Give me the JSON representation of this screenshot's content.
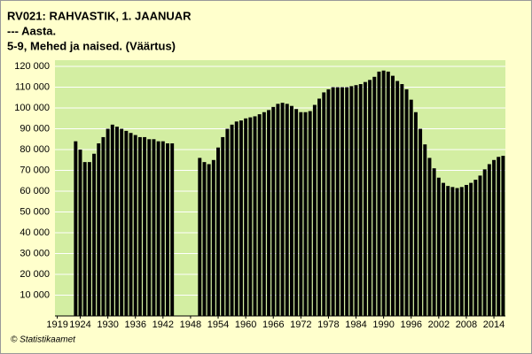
{
  "chart_data": {
    "type": "bar",
    "title": [
      "RV021: RAHVASTIK, 1. JAANUAR",
      "--- Aasta.",
      "5-9, Mehed ja naised. (Väärtus)"
    ],
    "source": "© Statistikaamet",
    "color": "#000000",
    "plot_background": "#d3eea2",
    "grid": true,
    "x": [
      1919,
      1920,
      1921,
      1922,
      1923,
      1924,
      1925,
      1926,
      1927,
      1928,
      1929,
      1930,
      1931,
      1932,
      1933,
      1934,
      1935,
      1936,
      1937,
      1938,
      1939,
      1940,
      1941,
      1942,
      1943,
      1944,
      1945,
      1946,
      1947,
      1948,
      1949,
      1950,
      1951,
      1952,
      1953,
      1954,
      1955,
      1956,
      1957,
      1958,
      1959,
      1960,
      1961,
      1962,
      1963,
      1964,
      1965,
      1966,
      1967,
      1968,
      1969,
      1970,
      1971,
      1972,
      1973,
      1974,
      1975,
      1976,
      1977,
      1978,
      1979,
      1980,
      1981,
      1982,
      1983,
      1984,
      1985,
      1986,
      1987,
      1988,
      1989,
      1990,
      1991,
      1992,
      1993,
      1994,
      1995,
      1996,
      1997,
      1998,
      1999,
      2000,
      2001,
      2002,
      2003,
      2004,
      2005,
      2006,
      2007,
      2008,
      2009,
      2010,
      2011,
      2012,
      2013,
      2014,
      2015,
      2016
    ],
    "values": [
      null,
      null,
      null,
      null,
      84000,
      80000,
      74000,
      74000,
      78000,
      83000,
      86000,
      90000,
      92000,
      91000,
      90000,
      89000,
      88000,
      87000,
      86000,
      86000,
      85000,
      85000,
      84000,
      84000,
      83000,
      83000,
      null,
      null,
      null,
      null,
      null,
      76000,
      74000,
      73000,
      75000,
      81000,
      86000,
      90000,
      92000,
      93500,
      94000,
      95000,
      95500,
      96000,
      97000,
      98000,
      99000,
      100500,
      102000,
      102500,
      102000,
      101000,
      99500,
      98000,
      98000,
      98500,
      101500,
      104500,
      107500,
      109000,
      110000,
      110000,
      110000,
      110000,
      110500,
      111000,
      111500,
      112500,
      113500,
      115000,
      117500,
      118000,
      117500,
      115500,
      113000,
      111500,
      109000,
      104000,
      98000,
      90000,
      82500,
      76000,
      71000,
      66500,
      64000,
      62500,
      62000,
      61500,
      62000,
      63000,
      64000,
      65500,
      67500,
      70500,
      73000,
      75000,
      76500,
      77000
    ],
    "xlim": [
      1918.5,
      2016.5
    ],
    "xticks": [
      1919,
      1924,
      1930,
      1936,
      1942,
      1948,
      1954,
      1960,
      1966,
      1972,
      1978,
      1984,
      1990,
      1996,
      2002,
      2008,
      2014
    ],
    "ylim": [
      0,
      123000
    ],
    "yticks": [
      {
        "value": 10000,
        "label": "10 000"
      },
      {
        "value": 20000,
        "label": "20 000"
      },
      {
        "value": 30000,
        "label": "30 000"
      },
      {
        "value": 40000,
        "label": "40 000"
      },
      {
        "value": 50000,
        "label": "50 000"
      },
      {
        "value": 60000,
        "label": "60 000"
      },
      {
        "value": 70000,
        "label": "70 000"
      },
      {
        "value": 80000,
        "label": "80 000"
      },
      {
        "value": 90000,
        "label": "90 000"
      },
      {
        "value": 100000,
        "label": "100 000"
      },
      {
        "value": 110000,
        "label": "110 000"
      },
      {
        "value": 120000,
        "label": "120 000"
      }
    ]
  }
}
